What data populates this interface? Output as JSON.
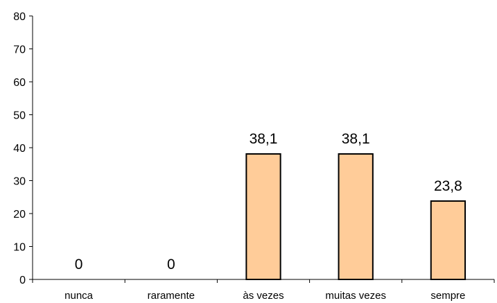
{
  "chart_data": {
    "type": "bar",
    "categories": [
      "nunca",
      "raramente",
      "às vezes",
      "muitas vezes",
      "sempre"
    ],
    "values": [
      0,
      0,
      38.1,
      38.1,
      23.8
    ],
    "data_labels": [
      "0",
      "0",
      "38,1",
      "38,1",
      "23,8"
    ],
    "ylim": [
      0,
      80
    ],
    "yticks": [
      0,
      10,
      20,
      30,
      40,
      50,
      60,
      70,
      80
    ],
    "ytick_labels": [
      "0",
      "10",
      "20",
      "30",
      "40",
      "50",
      "60",
      "70",
      "80"
    ],
    "title": "",
    "xlabel": "",
    "ylabel": "",
    "grid": false,
    "bar_color": "#FFCC99",
    "bar_edge_color": "#000000"
  }
}
